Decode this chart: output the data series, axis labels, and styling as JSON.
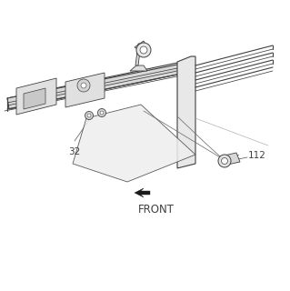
{
  "background_color": "#ffffff",
  "line_color": "#404040",
  "label_32": "32",
  "label_112": "112",
  "label_front": "FRONT",
  "fig_width": 3.19,
  "fig_height": 3.2,
  "dpi": 100
}
